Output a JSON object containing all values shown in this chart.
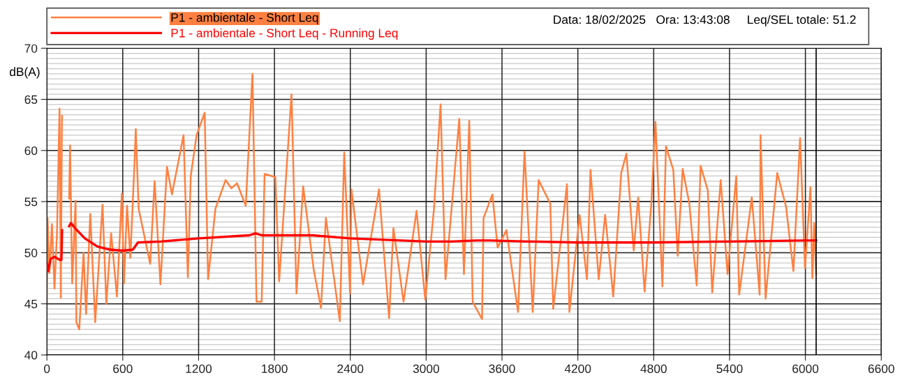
{
  "chart_data": {
    "type": "line",
    "ylabel": "dB(A)",
    "annotations": [
      "Data: 18/02/2025   Ora: 13:43:08     Leq/SEL totale: 51.2"
    ],
    "series": [
      {
        "name": "P1 - ambientale - Short Leq",
        "color": "#ff8040",
        "x": [
          0,
          5,
          20,
          40,
          60,
          80,
          100,
          110,
          119,
          150,
          176,
          183,
          200,
          227,
          233,
          256,
          290,
          310,
          343,
          382,
          440,
          470,
          508,
          554,
          593,
          610,
          634,
          660,
          692,
          703,
          726,
          817,
          852,
          898,
          950,
          989,
          1081,
          1115,
          1138,
          1184,
          1248,
          1275,
          1333,
          1413,
          1459,
          1504,
          1573,
          1626,
          1658,
          1699,
          1722,
          1807,
          1837,
          1935,
          1974,
          2027,
          2111,
          2168,
          2207,
          2317,
          2352,
          2398,
          2409,
          2501,
          2627,
          2707,
          2741,
          2821,
          2924,
          2993,
          3062,
          3114,
          3153,
          3262,
          3299,
          3341,
          3368,
          3442,
          3454,
          3524,
          3565,
          3635,
          3727,
          3778,
          3843,
          3890,
          3982,
          4005,
          4114,
          4133,
          4214,
          4272,
          4300,
          4365,
          4416,
          4480,
          4543,
          4584,
          4642,
          4677,
          4728,
          4781,
          4814,
          4869,
          4897,
          4955,
          4990,
          5029,
          5082,
          5140,
          5171,
          5228,
          5263,
          5330,
          5384,
          5453,
          5476,
          5576,
          5638,
          5645,
          5685,
          5777,
          5847,
          5905,
          5958,
          5997,
          6040,
          6055,
          6070,
          6085
        ],
        "values": [
          45.2,
          53.4,
          48,
          52.8,
          46.5,
          52,
          64.1,
          45.6,
          63.4,
          null,
          55.3,
          60.5,
          47,
          55.1,
          43.2,
          42.5,
          50,
          44,
          53.8,
          43.2,
          54.7,
          45,
          51.9,
          45.7,
          55.8,
          47,
          54.6,
          49.5,
          58.5,
          62.1,
          54.3,
          48.9,
          57,
          46.9,
          58.4,
          55.7,
          61.5,
          47.6,
          57.5,
          61.5,
          63.7,
          47.4,
          54.3,
          57.1,
          56.3,
          56.8,
          54.6,
          67.5,
          45.2,
          45.2,
          57.7,
          57.4,
          47.2,
          65.5,
          46,
          56.5,
          48.3,
          44.6,
          53.4,
          43.3,
          59.8,
          46,
          56.2,
          46.9,
          56.2,
          43.6,
          52.4,
          45.2,
          54.1,
          45.4,
          54.3,
          64.5,
          47.4,
          63.1,
          47.9,
          62.9,
          45.2,
          43.5,
          53.4,
          55.7,
          50.5,
          52.2,
          44.2,
          59.9,
          44.2,
          57.1,
          54.8,
          44.5,
          56.7,
          44.2,
          53.7,
          47.4,
          58.1,
          47.4,
          53.7,
          45.7,
          57.8,
          59.7,
          50.2,
          55.4,
          46.2,
          54.8,
          62.8,
          46.7,
          60.4,
          58.1,
          49.7,
          58.2,
          54.8,
          46.8,
          58.5,
          56.1,
          46.1,
          57.1,
          47.9,
          57.5,
          45.9,
          55.4,
          45.9,
          61.5,
          45.5,
          57.8,
          54.5,
          48.2,
          61.2,
          48.5,
          56.4,
          47.5,
          52.9,
          47.9
        ]
      },
      {
        "name": "P1 - ambientale - Short Leq - Running Leq",
        "color": "#ff0000",
        "x": [
          0,
          10,
          30,
          60,
          100,
          115,
          120,
          150,
          176,
          190,
          230,
          300,
          400,
          500,
          600,
          680,
          720,
          900,
          1200,
          1600,
          1650,
          1700,
          2100,
          2400,
          2800,
          3000,
          3200,
          3400,
          3500,
          3800,
          4200,
          4800,
          5400,
          6000,
          6085
        ],
        "values": [
          49.0,
          48.2,
          49.4,
          49.6,
          49.3,
          49.3,
          52.2,
          null,
          52.6,
          52.9,
          52.3,
          51.4,
          50.6,
          50.3,
          50.2,
          50.3,
          51.0,
          51.1,
          51.4,
          51.7,
          51.9,
          51.7,
          51.7,
          51.4,
          51.2,
          51.1,
          51.1,
          51.2,
          51.2,
          51.1,
          51.0,
          51.0,
          51.1,
          51.2,
          51.2
        ]
      }
    ],
    "xlim": [
      0,
      6600
    ],
    "xticks": [
      0,
      600,
      1200,
      1800,
      2400,
      3000,
      3600,
      4200,
      4800,
      5400,
      6000,
      6600
    ],
    "ylim": [
      40,
      70
    ],
    "yticks": [
      40,
      45,
      50,
      55,
      60,
      65,
      70
    ],
    "ref_lines": [
      {
        "axis": "x",
        "value": 6085,
        "label": null,
        "color": "#000000"
      }
    ],
    "grid": true,
    "legend": "top",
    "marker": "none",
    "line_style": "solid"
  }
}
